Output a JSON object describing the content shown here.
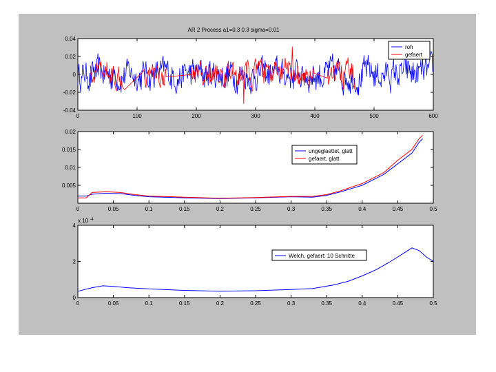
{
  "figure": {
    "title": "AR 2 Process        a1=0.3       0.3       sigma=0.01",
    "background": "#c0c0c0"
  },
  "chart_data": [
    {
      "type": "line",
      "xlim": [
        0,
        600
      ],
      "ylim": [
        -0.04,
        0.04
      ],
      "xticks": [
        "0",
        "100",
        "200",
        "300",
        "400",
        "500",
        "600"
      ],
      "yticks": [
        "0.04",
        "0.02",
        "0",
        "-0.02",
        "-0.04"
      ],
      "legend_position": "top-right",
      "series": [
        {
          "name": "roh",
          "color": "#0000ff",
          "kind": "noise",
          "n": 600,
          "amplitude": 0.015
        },
        {
          "name": "gefaert",
          "color": "#ff0000",
          "kind": "noise",
          "n": 600,
          "amplitude": 0.012,
          "x": [
            280,
            362
          ],
          "y": [
            -0.033,
            0.031
          ]
        }
      ]
    },
    {
      "type": "line",
      "xlim": [
        0,
        0.5
      ],
      "ylim": [
        0,
        0.02
      ],
      "xticks": [
        "0",
        "0.05",
        "0.1",
        "0.15",
        "0.2",
        "0.25",
        "0.3",
        "0.35",
        "0.4",
        "0.45",
        "0.5"
      ],
      "yticks": [
        "0.02",
        "0.015",
        "0.01",
        "0.005",
        ""
      ],
      "legend_position": "top-right",
      "series": [
        {
          "name": "ungeglaettet, glatt",
          "color": "#0000ff",
          "x": [
            0,
            0.012,
            0.02,
            0.04,
            0.06,
            0.08,
            0.1,
            0.15,
            0.2,
            0.25,
            0.3,
            0.33,
            0.35,
            0.37,
            0.4,
            0.43,
            0.45,
            0.47,
            0.48,
            0.485
          ],
          "y": [
            0.002,
            0.002,
            0.0025,
            0.0028,
            0.0027,
            0.0022,
            0.0018,
            0.0015,
            0.0013,
            0.0015,
            0.0018,
            0.0017,
            0.0022,
            0.0032,
            0.005,
            0.008,
            0.011,
            0.014,
            0.017,
            0.018
          ]
        },
        {
          "name": "gefaert, glatt",
          "color": "#ff0000",
          "x": [
            0,
            0.012,
            0.02,
            0.04,
            0.06,
            0.08,
            0.1,
            0.15,
            0.2,
            0.25,
            0.3,
            0.33,
            0.35,
            0.37,
            0.4,
            0.43,
            0.45,
            0.47,
            0.48,
            0.485
          ],
          "y": [
            0.0015,
            0.0015,
            0.003,
            0.0032,
            0.003,
            0.0024,
            0.002,
            0.0017,
            0.0014,
            0.0016,
            0.0019,
            0.0019,
            0.0024,
            0.0035,
            0.0055,
            0.0085,
            0.012,
            0.015,
            0.018,
            0.019
          ]
        }
      ]
    },
    {
      "type": "line",
      "xlim": [
        0,
        0.5
      ],
      "ylim": [
        0,
        4
      ],
      "exponent_label": "x 10",
      "exponent_sup": "-4",
      "xticks": [
        "0",
        "0.05",
        "0.1",
        "0.15",
        "0.2",
        "0.25",
        "0.3",
        "0.35",
        "0.4",
        "0.45",
        "0.5"
      ],
      "yticks": [
        "4",
        "2",
        "0"
      ],
      "legend_position": "top-right",
      "series": [
        {
          "name": "Welch, gefaert: 10 Schnitte",
          "color": "#0000ff",
          "x": [
            0,
            0.02,
            0.035,
            0.05,
            0.07,
            0.1,
            0.15,
            0.2,
            0.25,
            0.3,
            0.33,
            0.36,
            0.38,
            0.4,
            0.42,
            0.44,
            0.46,
            0.47,
            0.48,
            0.49,
            0.5
          ],
          "y": [
            0.35,
            0.55,
            0.65,
            0.62,
            0.55,
            0.48,
            0.4,
            0.35,
            0.38,
            0.45,
            0.5,
            0.7,
            0.9,
            1.2,
            1.55,
            2.0,
            2.5,
            2.75,
            2.6,
            2.25,
            2.0
          ]
        }
      ]
    }
  ]
}
